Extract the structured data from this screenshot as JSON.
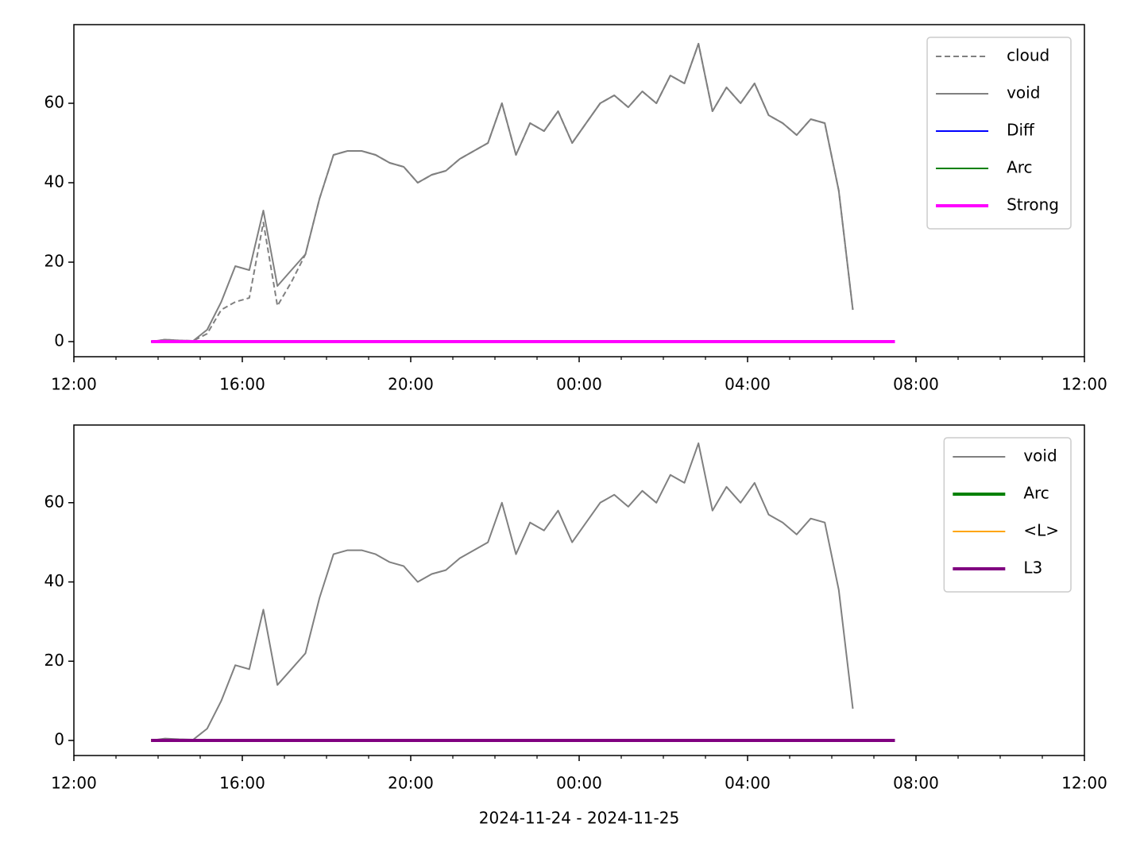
{
  "chart_data": [
    {
      "type": "line",
      "x": [
        "13:50",
        "14:10",
        "14:30",
        "14:50",
        "15:10",
        "15:30",
        "15:50",
        "16:10",
        "16:30",
        "16:50",
        "17:10",
        "17:30",
        "17:50",
        "18:10",
        "18:30",
        "18:50",
        "19:10",
        "19:30",
        "19:50",
        "20:10",
        "20:30",
        "20:50",
        "21:10",
        "21:30",
        "21:50",
        "22:10",
        "22:30",
        "22:50",
        "23:10",
        "23:30",
        "23:50",
        "00:10",
        "00:30",
        "00:50",
        "01:10",
        "01:30",
        "01:50",
        "02:10",
        "02:30",
        "02:50",
        "03:10",
        "03:30",
        "03:50",
        "04:10",
        "04:30",
        "04:50",
        "05:10",
        "05:30",
        "05:50",
        "06:10",
        "06:30",
        "06:50",
        "07:10",
        "07:30"
      ],
      "series": [
        {
          "name": "cloud",
          "color": "#808080",
          "linestyle": "dashed",
          "linewidth": 2,
          "values": [
            0,
            0.5,
            0.3,
            0.2,
            2,
            8,
            10,
            11,
            30,
            9,
            15,
            22,
            36,
            47,
            48,
            48,
            47,
            45,
            44,
            40,
            42,
            43,
            46,
            48,
            50,
            60,
            47,
            55,
            53,
            58,
            50,
            55,
            60,
            62,
            59,
            63,
            60,
            67,
            65,
            75,
            58,
            64,
            60,
            65,
            57,
            55,
            52,
            56,
            55,
            38,
            8,
            null,
            null,
            null
          ]
        },
        {
          "name": "void",
          "color": "#808080",
          "linestyle": "solid",
          "linewidth": 2,
          "values": [
            0,
            0.5,
            0.3,
            0.2,
            3,
            10,
            19,
            18,
            33,
            14,
            18,
            22,
            36,
            47,
            48,
            48,
            47,
            45,
            44,
            40,
            42,
            43,
            46,
            48,
            50,
            60,
            47,
            55,
            53,
            58,
            50,
            55,
            60,
            62,
            59,
            63,
            60,
            67,
            65,
            75,
            58,
            64,
            60,
            65,
            57,
            55,
            52,
            56,
            55,
            38,
            8,
            null,
            null,
            null
          ]
        },
        {
          "name": "Diff",
          "color": "#0000ff",
          "linestyle": "solid",
          "linewidth": 2,
          "values": [
            0,
            0,
            0,
            0,
            0,
            0,
            0,
            0,
            0,
            0,
            0,
            0,
            0,
            0,
            0,
            0,
            0,
            0,
            0,
            0,
            0,
            0,
            0,
            0,
            0,
            0,
            0,
            0,
            0,
            0,
            0,
            0,
            0,
            0,
            0,
            0,
            0,
            0,
            0,
            0,
            0,
            0,
            0,
            0,
            0,
            0,
            0,
            0,
            0,
            0,
            0,
            0,
            0,
            0
          ]
        },
        {
          "name": "Arc",
          "color": "#008000",
          "linestyle": "solid",
          "linewidth": 2,
          "values": [
            0,
            0,
            0,
            0,
            0,
            0,
            0,
            0,
            0,
            0,
            0,
            0,
            0,
            0,
            0,
            0,
            0,
            0,
            0,
            0,
            0,
            0,
            0,
            0,
            0,
            0,
            0,
            0,
            0,
            0,
            0,
            0,
            0,
            0,
            0,
            0,
            0,
            0,
            0,
            0,
            0,
            0,
            0,
            0,
            0,
            0,
            0,
            0,
            0,
            0,
            0,
            0,
            0,
            0
          ]
        },
        {
          "name": "Strong",
          "color": "#ff00ff",
          "linestyle": "solid",
          "linewidth": 4,
          "values": [
            0,
            0,
            0,
            0,
            0,
            0,
            0,
            0,
            0,
            0,
            0,
            0,
            0,
            0,
            0,
            0,
            0,
            0,
            0,
            0,
            0,
            0,
            0,
            0,
            0,
            0,
            0,
            0,
            0,
            0,
            0,
            0,
            0,
            0,
            0,
            0,
            0,
            0,
            0,
            0,
            0,
            0,
            0,
            0,
            0,
            0,
            0,
            0,
            0,
            0,
            0,
            0,
            0,
            0
          ]
        }
      ],
      "xlim": [
        "12:00",
        "12:00"
      ],
      "xticks": [
        "12:00",
        "16:00",
        "20:00",
        "00:00",
        "04:00",
        "08:00",
        "12:00"
      ],
      "xminor_ticks": [
        "13:00",
        "14:00",
        "15:00",
        "17:00",
        "18:00",
        "19:00",
        "21:00",
        "22:00",
        "23:00",
        "01:00",
        "02:00",
        "03:00",
        "05:00",
        "06:00",
        "07:00",
        "09:00",
        "10:00",
        "11:00"
      ],
      "ylim": [
        -3.8,
        79.8
      ],
      "yticks": [
        0,
        20,
        40,
        60
      ],
      "legend": "upper right"
    },
    {
      "type": "line",
      "x": [
        "13:50",
        "14:10",
        "14:30",
        "14:50",
        "15:10",
        "15:30",
        "15:50",
        "16:10",
        "16:30",
        "16:50",
        "17:10",
        "17:30",
        "17:50",
        "18:10",
        "18:30",
        "18:50",
        "19:10",
        "19:30",
        "19:50",
        "20:10",
        "20:30",
        "20:50",
        "21:10",
        "21:30",
        "21:50",
        "22:10",
        "22:30",
        "22:50",
        "23:10",
        "23:30",
        "23:50",
        "00:10",
        "00:30",
        "00:50",
        "01:10",
        "01:30",
        "01:50",
        "02:10",
        "02:30",
        "02:50",
        "03:10",
        "03:30",
        "03:50",
        "04:10",
        "04:30",
        "04:50",
        "05:10",
        "05:30",
        "05:50",
        "06:10",
        "06:30",
        "06:50",
        "07:10",
        "07:30"
      ],
      "series": [
        {
          "name": "void",
          "color": "#808080",
          "linestyle": "solid",
          "linewidth": 2,
          "values": [
            0,
            0.5,
            0.3,
            0.2,
            3,
            10,
            19,
            18,
            33,
            14,
            18,
            22,
            36,
            47,
            48,
            48,
            47,
            45,
            44,
            40,
            42,
            43,
            46,
            48,
            50,
            60,
            47,
            55,
            53,
            58,
            50,
            55,
            60,
            62,
            59,
            63,
            60,
            67,
            65,
            75,
            58,
            64,
            60,
            65,
            57,
            55,
            52,
            56,
            55,
            38,
            8,
            null,
            null,
            null
          ]
        },
        {
          "name": "Arc",
          "color": "#008000",
          "linestyle": "solid",
          "linewidth": 4,
          "values": [
            0,
            0,
            0,
            0,
            0,
            0,
            0,
            0,
            0,
            0,
            0,
            0,
            0,
            0,
            0,
            0,
            0,
            0,
            0,
            0,
            0,
            0,
            0,
            0,
            0,
            0,
            0,
            0,
            0,
            0,
            0,
            0,
            0,
            0,
            0,
            0,
            0,
            0,
            0,
            0,
            0,
            0,
            0,
            0,
            0,
            0,
            0,
            0,
            0,
            0,
            0,
            0,
            0,
            0
          ]
        },
        {
          "name": "<L>",
          "color": "#ffa500",
          "linestyle": "solid",
          "linewidth": 2,
          "values": [
            0,
            0,
            0,
            0,
            0,
            0,
            0,
            0,
            0,
            0,
            0,
            0,
            0,
            0,
            0,
            0,
            0,
            0,
            0,
            0,
            0,
            0,
            0,
            0,
            0,
            0,
            0,
            0,
            0,
            0,
            0,
            0,
            0,
            0,
            0,
            0,
            0,
            0,
            0,
            0,
            0,
            0,
            0,
            0,
            0,
            0,
            0,
            0,
            0,
            0,
            0,
            0,
            0,
            0
          ]
        },
        {
          "name": "L3",
          "color": "#800080",
          "linestyle": "solid",
          "linewidth": 4,
          "values": [
            0,
            0,
            0,
            0,
            0,
            0,
            0,
            0,
            0,
            0,
            0,
            0,
            0,
            0,
            0,
            0,
            0,
            0,
            0,
            0,
            0,
            0,
            0,
            0,
            0,
            0,
            0,
            0,
            0,
            0,
            0,
            0,
            0,
            0,
            0,
            0,
            0,
            0,
            0,
            0,
            0,
            0,
            0,
            0,
            0,
            0,
            0,
            0,
            0,
            0,
            0,
            0,
            0,
            0
          ]
        }
      ],
      "xlim": [
        "12:00",
        "12:00"
      ],
      "xticks": [
        "12:00",
        "16:00",
        "20:00",
        "00:00",
        "04:00",
        "08:00",
        "12:00"
      ],
      "xminor_ticks": [
        "13:00",
        "14:00",
        "15:00",
        "17:00",
        "18:00",
        "19:00",
        "21:00",
        "22:00",
        "23:00",
        "01:00",
        "02:00",
        "03:00",
        "05:00",
        "06:00",
        "07:00",
        "09:00",
        "10:00",
        "11:00"
      ],
      "ylim": [
        -3.8,
        79.6
      ],
      "yticks": [
        0,
        20,
        40,
        60
      ],
      "xlabel": "2024-11-24 - 2024-11-25",
      "legend": "upper right"
    }
  ]
}
